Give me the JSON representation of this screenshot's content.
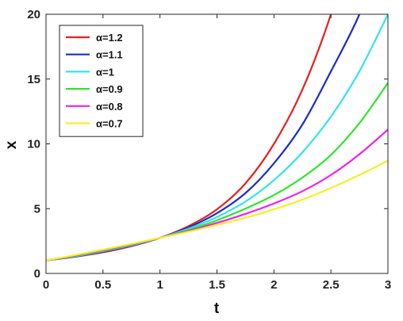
{
  "chart_data": {
    "type": "line",
    "title": "",
    "xlabel": "t",
    "ylabel": "x",
    "xlim": [
      0,
      3
    ],
    "ylim": [
      0,
      20
    ],
    "xticks": [
      "0",
      "0.5",
      "1",
      "1.5",
      "2",
      "2.5",
      "3"
    ],
    "yticks": [
      "0",
      "5",
      "10",
      "15",
      "20"
    ],
    "grid": false,
    "legend_position": "top-left",
    "x": [
      0,
      0.25,
      0.5,
      0.75,
      1,
      1.25,
      1.5,
      1.75,
      2,
      2.25,
      2.5,
      2.75,
      3
    ],
    "series": [
      {
        "name": "α=1.2",
        "color": "#e8201f",
        "values": [
          1.0,
          1.28,
          1.63,
          2.11,
          2.75,
          3.65,
          4.95,
          6.95,
          10.0,
          14.2,
          20.0,
          null,
          null
        ]
      },
      {
        "name": "α=1.1",
        "color": "#1a2bc9",
        "values": [
          1.0,
          1.3,
          1.68,
          2.15,
          2.75,
          3.55,
          4.65,
          6.2,
          8.5,
          11.5,
          15.6,
          20.0,
          null
        ]
      },
      {
        "name": "α=1",
        "color": "#33e3e8",
        "values": [
          1.0,
          1.32,
          1.72,
          2.18,
          2.75,
          3.45,
          4.35,
          5.55,
          7.2,
          9.35,
          12.1,
          15.6,
          20.0
        ]
      },
      {
        "name": "α=0.9",
        "color": "#2ee62b",
        "values": [
          1.0,
          1.35,
          1.76,
          2.22,
          2.75,
          3.35,
          4.1,
          5.0,
          6.05,
          7.4,
          9.15,
          11.6,
          14.7
        ]
      },
      {
        "name": "α=0.8",
        "color": "#ee22e8",
        "values": [
          1.0,
          1.38,
          1.8,
          2.25,
          2.75,
          3.28,
          3.9,
          4.6,
          5.4,
          6.35,
          7.6,
          9.2,
          11.1
        ]
      },
      {
        "name": "α=0.7",
        "color": "#f5ee2a",
        "values": [
          1.0,
          1.41,
          1.84,
          2.28,
          2.75,
          3.22,
          3.75,
          4.3,
          4.95,
          5.7,
          6.6,
          7.6,
          8.7
        ]
      }
    ]
  }
}
